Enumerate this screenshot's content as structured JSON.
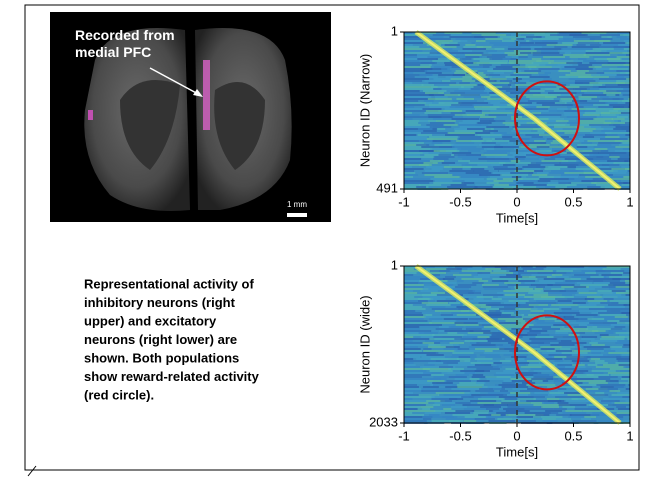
{
  "image_label": "Recorded from medial PFC",
  "scale_bar": "1 mm",
  "caption": [
    "Representational activity of",
    "inhibitory neurons (right",
    "upper) and excitatory",
    "neurons (right lower) are",
    "shown.  Both populations",
    "show reward-related activity",
    "(red circle)."
  ],
  "chart_data": [
    {
      "type": "heatmap",
      "xlabel": "Time[s]",
      "ylabel": "Neuron ID (Narrow)",
      "xlim": [
        -1,
        1
      ],
      "xticks": [
        -1,
        -0.5,
        0,
        0.5,
        1
      ],
      "ylim": [
        1,
        491
      ],
      "yticks": [
        1,
        491
      ],
      "reference_line": 0
    },
    {
      "type": "heatmap",
      "xlabel": "Time[s]",
      "ylabel": "Neuron ID (wide)",
      "xlim": [
        -1,
        1
      ],
      "xticks": [
        -1,
        -0.5,
        0,
        0.5,
        1
      ],
      "ylim": [
        1,
        2033
      ],
      "yticks": [
        1,
        2033
      ],
      "reference_line": 0
    }
  ]
}
